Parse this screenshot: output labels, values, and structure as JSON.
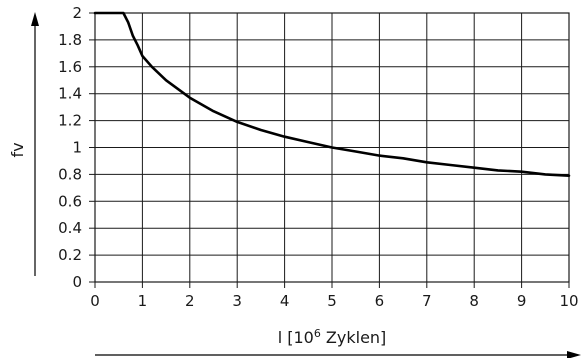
{
  "chart_data": {
    "type": "line",
    "title": "",
    "xlabel": "l [10",
    "xlabel_sup": "6",
    "xlabel_suffix": " Zyklen]",
    "ylabel": "fv",
    "xlim": [
      0,
      10
    ],
    "ylim": [
      0,
      2
    ],
    "xticks": [
      "0",
      "1",
      "2",
      "3",
      "4",
      "5",
      "6",
      "7",
      "8",
      "9",
      "10"
    ],
    "yticks": [
      "0",
      "0.2",
      "0.4",
      "0.6",
      "0.8",
      "1",
      "1.2",
      "1.4",
      "1.6",
      "1.8",
      "2"
    ],
    "grid": true,
    "series": [
      {
        "x": [
          0,
          0.6,
          0.7,
          0.8,
          0.9,
          1.0,
          1.2,
          1.5,
          2.0,
          2.5,
          3.0,
          3.5,
          4.0,
          4.5,
          5.0,
          5.5,
          6.0,
          6.5,
          7.0,
          7.5,
          8.0,
          8.5,
          9.0,
          9.5,
          10.0
        ],
        "y": [
          2.0,
          2.0,
          1.93,
          1.83,
          1.76,
          1.68,
          1.6,
          1.5,
          1.37,
          1.27,
          1.19,
          1.13,
          1.08,
          1.04,
          1.0,
          0.97,
          0.94,
          0.92,
          0.89,
          0.87,
          0.85,
          0.83,
          0.82,
          0.8,
          0.79
        ]
      }
    ]
  }
}
